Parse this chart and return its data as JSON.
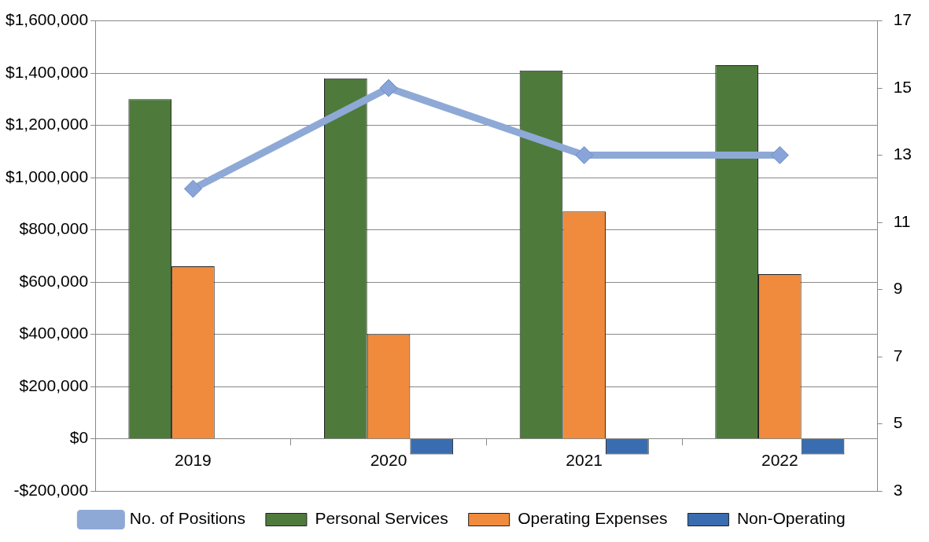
{
  "chart_data": {
    "type": "bar",
    "categories": [
      "2019",
      "2020",
      "2021",
      "2022"
    ],
    "series": [
      {
        "name": "Personal Services",
        "color": "#4e7a3c",
        "values": [
          1300000,
          1380000,
          1410000,
          1430000
        ]
      },
      {
        "name": "Operating Expenses",
        "color": "#f08a3c",
        "values": [
          660000,
          400000,
          870000,
          630000
        ]
      },
      {
        "name": "Non-Operating",
        "color": "#3a6db0",
        "values": [
          null,
          -60000,
          -60000,
          -60000
        ]
      },
      {
        "name": "No. of Positions",
        "color": "#8ea9d6",
        "type": "line",
        "axis": "y2",
        "marker": "diamond",
        "values": [
          12,
          15,
          13,
          13
        ]
      }
    ],
    "ylim": [
      -200000,
      1600000
    ],
    "yticks": [
      {
        "value": -200000,
        "label": "-$200,000"
      },
      {
        "value": 0,
        "label": "$0"
      },
      {
        "value": 200000,
        "label": "$200,000"
      },
      {
        "value": 400000,
        "label": "$400,000"
      },
      {
        "value": 600000,
        "label": "$600,000"
      },
      {
        "value": 800000,
        "label": "$800,000"
      },
      {
        "value": 1000000,
        "label": "$1,000,000"
      },
      {
        "value": 1200000,
        "label": "$1,200,000"
      },
      {
        "value": 1400000,
        "label": "$1,400,000"
      },
      {
        "value": 1600000,
        "label": "$1,600,000"
      }
    ],
    "y2lim": [
      3,
      17
    ],
    "y2ticks": [
      3,
      5,
      7,
      9,
      11,
      13,
      15,
      17
    ],
    "grid": "y",
    "legend": "bottom"
  }
}
